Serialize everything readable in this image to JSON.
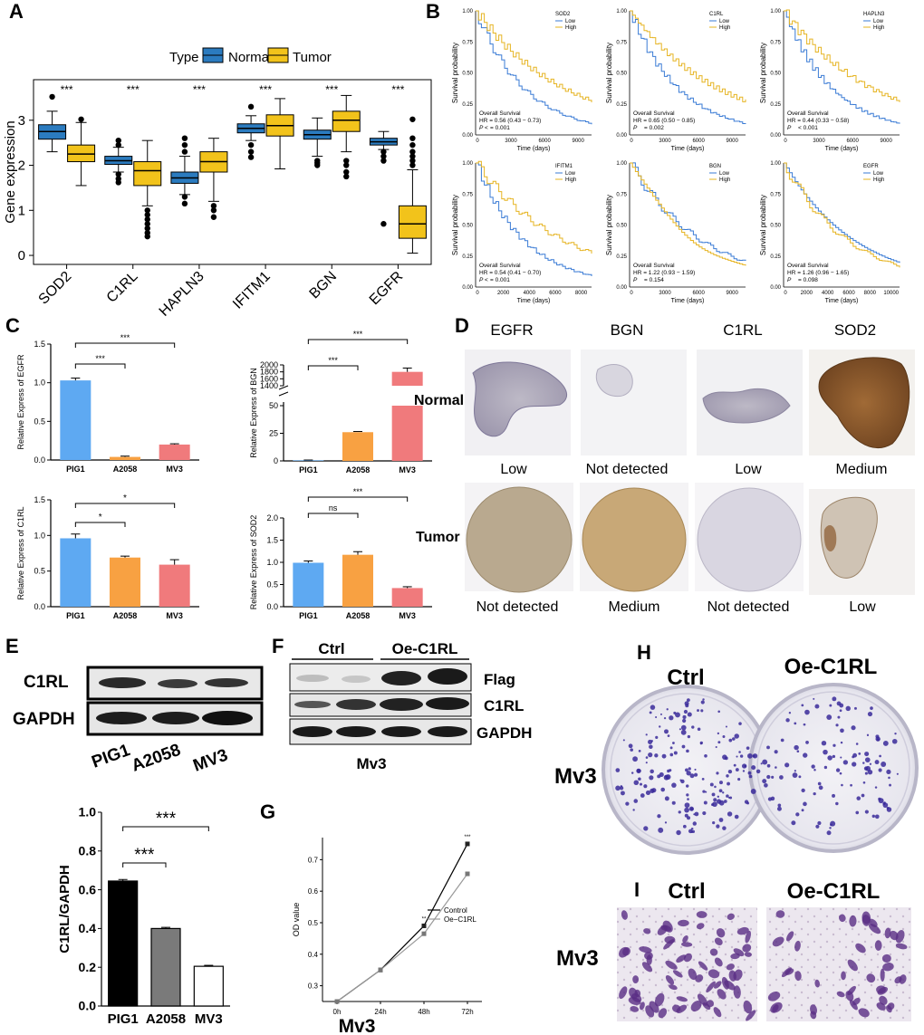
{
  "panel_labels": {
    "a": "A",
    "b": "B",
    "c": "C",
    "d": "D",
    "e": "E",
    "f": "F",
    "g": "G",
    "h": "H",
    "i": "I"
  },
  "colors": {
    "normal": "#2b7bbf",
    "tumor": "#f2c31b",
    "pig1": "#5ea9f2",
    "a2058": "#f8a142",
    "mv3": "#f07a7c",
    "low": "#3a7bd5",
    "high": "#e6b422",
    "black": "#000000",
    "gray": "#7a7a7a"
  },
  "chart_data": [
    {
      "id": "A",
      "type": "box",
      "legend_title": "Type",
      "legend": [
        "Normal",
        "Tumor"
      ],
      "ylabel": "Gene expression",
      "ylim": [
        -0.2,
        3.9
      ],
      "yticks": [
        0,
        1,
        2,
        3
      ],
      "categories": [
        "SOD2",
        "C1RL",
        "HAPLN3",
        "IFITM1",
        "BGN",
        "EGFR"
      ],
      "significance": [
        "***",
        "***",
        "***",
        "***",
        "***",
        "***"
      ],
      "normal": [
        {
          "whisker_low": 2.3,
          "q1": 2.58,
          "median": 2.75,
          "q3": 2.9,
          "whisker_high": 3.2,
          "outliers": [
            3.52
          ]
        },
        {
          "whisker_low": 1.85,
          "q1": 2.02,
          "median": 2.1,
          "q3": 2.2,
          "whisker_high": 2.4,
          "outliers": [
            1.62,
            1.7,
            1.8,
            2.45,
            2.55
          ]
        },
        {
          "whisker_low": 1.35,
          "q1": 1.6,
          "median": 1.72,
          "q3": 1.85,
          "whisker_high": 2.2,
          "outliers": [
            1.15,
            1.3,
            2.3,
            2.45,
            2.6
          ]
        },
        {
          "whisker_low": 2.55,
          "q1": 2.72,
          "median": 2.82,
          "q3": 2.92,
          "whisker_high": 3.1,
          "outliers": [
            2.18,
            2.3,
            2.45,
            3.3
          ]
        },
        {
          "whisker_low": 2.2,
          "q1": 2.58,
          "median": 2.68,
          "q3": 2.78,
          "whisker_high": 3.05,
          "outliers": [
            2.0,
            2.05,
            2.1
          ]
        },
        {
          "whisker_low": 2.35,
          "q1": 2.45,
          "median": 2.52,
          "q3": 2.6,
          "whisker_high": 2.75,
          "outliers": [
            0.7,
            2.1,
            2.2,
            2.3
          ]
        }
      ],
      "tumor": [
        {
          "whisker_low": 1.55,
          "q1": 2.08,
          "median": 2.25,
          "q3": 2.45,
          "whisker_high": 2.95,
          "outliers": [
            3.02
          ]
        },
        {
          "whisker_low": 1.1,
          "q1": 1.55,
          "median": 1.88,
          "q3": 2.08,
          "whisker_high": 2.55,
          "outliers": [
            0.42,
            0.5,
            0.6,
            0.7,
            0.8,
            0.9,
            1.0
          ]
        },
        {
          "whisker_low": 1.2,
          "q1": 1.85,
          "median": 2.08,
          "q3": 2.3,
          "whisker_high": 2.6,
          "outliers": [
            0.85,
            1.0,
            1.1
          ]
        },
        {
          "whisker_low": 1.92,
          "q1": 2.65,
          "median": 2.88,
          "q3": 3.12,
          "whisker_high": 3.48,
          "outliers": []
        },
        {
          "whisker_low": 2.3,
          "q1": 2.75,
          "median": 3.0,
          "q3": 3.2,
          "whisker_high": 3.55,
          "outliers": [
            1.75,
            1.85,
            2.0,
            2.1
          ]
        },
        {
          "whisker_low": 0.05,
          "q1": 0.38,
          "median": 0.7,
          "q3": 1.1,
          "whisker_high": 1.9,
          "outliers": [
            2.0,
            2.1,
            2.2,
            2.3,
            2.45,
            2.6,
            3.02
          ]
        }
      ]
    },
    {
      "id": "B",
      "type": "survival",
      "xlabel": "Time (days)",
      "ylabel": "Survival probability",
      "legend": [
        "Low",
        "High"
      ],
      "subtitle": "Overall Survival",
      "panels": [
        {
          "gene": "SOD2",
          "hr": "HR = 0.56 (0.43 − 0.73)",
          "p": "= 0.001",
          "p_prefix": "P <",
          "xticks": [
            "0",
            "3000",
            "6000",
            "9000"
          ],
          "xmax": 11000
        },
        {
          "gene": "C1RL",
          "hr": "HR = 0.65 (0.50 − 0.85)",
          "p": "= 0.002",
          "p_prefix": "P",
          "xticks": [
            "0",
            "3000",
            "6000",
            "9000"
          ],
          "xmax": 11000
        },
        {
          "gene": "HAPLN3",
          "hr": "HR = 0.44 (0.33 − 0.58)",
          "p": "< 0.001",
          "p_prefix": "P",
          "xticks": [
            "0",
            "3000",
            "6000",
            "9000"
          ],
          "xmax": 11000
        },
        {
          "gene": "IFITM1",
          "hr": "HR = 0.54 (0.41 − 0.70)",
          "p": "= 0.001",
          "p_prefix": "P <",
          "xticks": [
            "0",
            "2000",
            "4000",
            "6000",
            "8000"
          ],
          "xmax": 9000
        },
        {
          "gene": "BGN",
          "hr": "HR = 1.22 (0.93 − 1.59)",
          "p": "= 0.154",
          "p_prefix": "P",
          "xticks": [
            "0",
            "3000",
            "6000",
            "9000"
          ],
          "xmax": 11000
        },
        {
          "gene": "EGFR",
          "hr": "HR = 1.26 (0.96 − 1.65)",
          "p": "= 0.098",
          "p_prefix": "P",
          "xticks": [
            "0",
            "2000",
            "4000",
            "6000",
            "8000",
            "10000"
          ],
          "xmax": 11000
        }
      ],
      "yticks": [
        "0.00",
        "0.25",
        "0.50",
        "0.75",
        "1.00"
      ]
    },
    {
      "id": "C",
      "type": "bar",
      "categories": [
        "PIG1",
        "A2058",
        "MV3"
      ],
      "panels": [
        {
          "ylabel": "Relative Express of EGFR",
          "values": [
            1.03,
            0.04,
            0.2
          ],
          "errors": [
            0.03,
            0.01,
            0.01
          ],
          "yticks": [
            "0.0",
            "0.5",
            "1.0",
            "1.5"
          ],
          "ymax": 1.5,
          "sig": [
            {
              "from": 0,
              "to": 1,
              "label": "***"
            },
            {
              "from": 0,
              "to": 2,
              "label": "***"
            }
          ]
        },
        {
          "ylabel": "Relative Express of BGN",
          "values": [
            0.5,
            26,
            1800
          ],
          "errors": [
            0.3,
            0.6,
            110
          ],
          "yticks_low": [
            "0",
            "25",
            "50"
          ],
          "yticks_high": [
            "1400",
            "1600",
            "1800",
            "2000"
          ],
          "sig": [
            {
              "from": 0,
              "to": 1,
              "label": "***"
            },
            {
              "from": 0,
              "to": 2,
              "label": "***"
            }
          ]
        },
        {
          "ylabel": "Relative Express of C1RL",
          "values": [
            0.96,
            0.69,
            0.59
          ],
          "errors": [
            0.06,
            0.02,
            0.07
          ],
          "yticks": [
            "0.0",
            "0.5",
            "1.0",
            "1.5"
          ],
          "ymax": 1.5,
          "sig": [
            {
              "from": 0,
              "to": 1,
              "label": "*"
            },
            {
              "from": 0,
              "to": 2,
              "label": "*"
            }
          ]
        },
        {
          "ylabel": "Relative Express of SOD2",
          "values": [
            0.99,
            1.17,
            0.42
          ],
          "errors": [
            0.04,
            0.07,
            0.03
          ],
          "yticks": [
            "0.0",
            "0.5",
            "1.0",
            "1.5",
            "2.0"
          ],
          "ymax": 2.0,
          "sig": [
            {
              "from": 0,
              "to": 1,
              "label": "ns"
            },
            {
              "from": 0,
              "to": 2,
              "label": "***"
            }
          ]
        }
      ]
    },
    {
      "id": "E",
      "type": "bar",
      "ylabel": "C1RL/GAPDH",
      "categories": [
        "PIG1",
        "A2058",
        "MV3"
      ],
      "values": [
        0.645,
        0.4,
        0.205
      ],
      "errors": [
        0.008,
        0.006,
        0.005
      ],
      "yticks": [
        "0.0",
        "0.2",
        "0.4",
        "0.6",
        "0.8",
        "1.0"
      ],
      "ymax": 1.0,
      "sig": [
        {
          "from": 0,
          "to": 1,
          "label": "***"
        },
        {
          "from": 0,
          "to": 2,
          "label": "***"
        }
      ]
    },
    {
      "id": "G",
      "type": "line",
      "ylabel": "OD value",
      "xlabel": "Mv3",
      "categories": [
        "0h",
        "24h",
        "48h",
        "72h"
      ],
      "yticks": [
        "0.3",
        "0.4",
        "0.5",
        "0.6",
        "0.7"
      ],
      "ylim": [
        0.25,
        0.77
      ],
      "series": [
        {
          "name": "Control",
          "values": [
            0.25,
            0.35,
            0.49,
            0.75
          ]
        },
        {
          "name": "Oe−C1RL",
          "values": [
            0.25,
            0.35,
            0.465,
            0.655
          ]
        }
      ],
      "sig_labels": [
        "**",
        "***"
      ]
    }
  ],
  "panel_d": {
    "cols": [
      "EGFR",
      "BGN",
      "C1RL",
      "SOD2"
    ],
    "rows": [
      "Normal",
      "Tumor"
    ],
    "normal_levels": [
      "Low",
      "Not detected",
      "Low",
      "Medium"
    ],
    "tumor_levels": [
      "Not detected",
      "Medium",
      "Not detected",
      "Low"
    ]
  },
  "panel_e_blot": {
    "bands": [
      "C1RL",
      "GAPDH"
    ],
    "lanes": [
      "PIG1",
      "A2058",
      "MV3"
    ]
  },
  "panel_f_blot": {
    "groups": [
      "Ctrl",
      "Oe-C1RL"
    ],
    "bands": [
      "Flag",
      "C1RL",
      "GAPDH"
    ],
    "cell": "Mv3"
  },
  "panel_h": {
    "groups": [
      "Ctrl",
      "Oe-C1RL"
    ],
    "cell": "Mv3"
  },
  "panel_i": {
    "groups": [
      "Ctrl",
      "Oe-C1RL"
    ],
    "cell": "Mv3"
  }
}
